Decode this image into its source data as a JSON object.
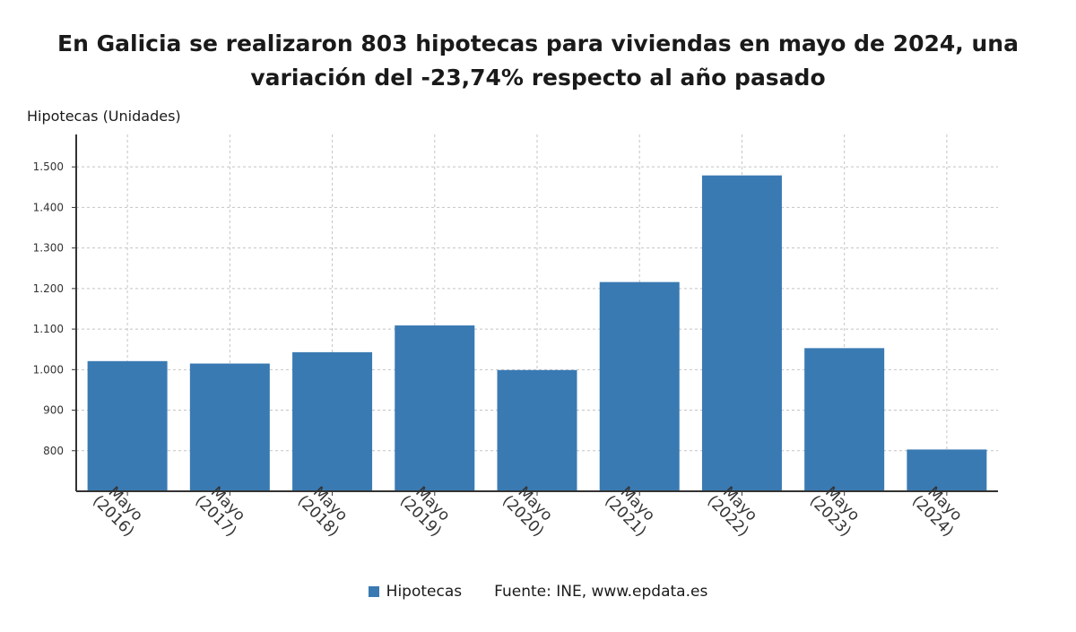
{
  "chart_data": {
    "type": "bar",
    "title": "En Galicia se realizaron 803 hipotecas para viviendas en mayo de 2024, una variación del -23,74% respecto al año pasado",
    "ylabel": "Hipotecas (Unidades)",
    "xlabel": "",
    "categories": [
      "Mayo (2016)",
      "Mayo (2017)",
      "Mayo (2018)",
      "Mayo (2019)",
      "Mayo (2020)",
      "Mayo (2021)",
      "Mayo (2022)",
      "Mayo (2023)",
      "Mayo (2024)"
    ],
    "category_lines": [
      [
        "Mayo",
        "(2016)"
      ],
      [
        "Mayo",
        "(2017)"
      ],
      [
        "Mayo",
        "(2018)"
      ],
      [
        "Mayo",
        "(2019)"
      ],
      [
        "Mayo",
        "(2020)"
      ],
      [
        "Mayo",
        "(2021)"
      ],
      [
        "Mayo",
        "(2022)"
      ],
      [
        "Mayo",
        "(2023)"
      ],
      [
        "Mayo",
        "(2024)"
      ]
    ],
    "series": [
      {
        "name": "Hipotecas",
        "values": [
          1021,
          1015,
          1043,
          1109,
          999,
          1216,
          1479,
          1053,
          803
        ],
        "color": "#3a7ab3"
      }
    ],
    "ylim": [
      700,
      1580
    ],
    "yticks": [
      800,
      900,
      1000,
      1100,
      1200,
      1300,
      1400,
      1500
    ],
    "ytick_labels": [
      "800",
      "900",
      "1.000",
      "1.100",
      "1.200",
      "1.300",
      "1.400",
      "1.500"
    ],
    "grid": true,
    "legend_position": "bottom",
    "source": "Fuente: INE, www.epdata.es"
  }
}
